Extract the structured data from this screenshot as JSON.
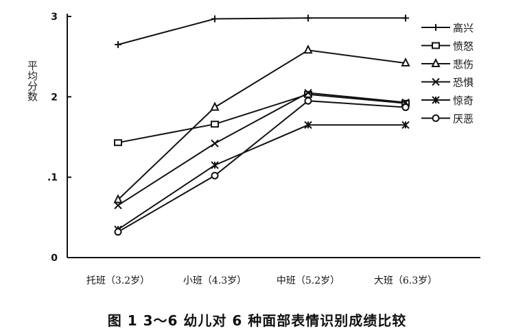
{
  "chart_data": {
    "type": "line",
    "title": "",
    "xlabel": "",
    "ylabel": "平均分数",
    "categories": [
      "托班（3.2岁）",
      "小班（4.3岁）",
      "中班（5.2岁）",
      "大班（6.3岁）"
    ],
    "yticks": [
      "0",
      ".1",
      "2",
      "3"
    ],
    "ylim": [
      0,
      3
    ],
    "grid": false,
    "legend_position": "right",
    "series": [
      {
        "name": "高兴",
        "marker": "plus",
        "values": [
          2.65,
          2.97,
          2.98,
          2.98
        ]
      },
      {
        "name": "愤怒",
        "marker": "square",
        "values": [
          1.43,
          1.66,
          2.03,
          1.92
        ]
      },
      {
        "name": "悲伤",
        "marker": "triangle",
        "values": [
          0.72,
          1.87,
          2.58,
          2.42
        ]
      },
      {
        "name": "恐惧",
        "marker": "x",
        "values": [
          0.65,
          1.42,
          2.05,
          1.93
        ]
      },
      {
        "name": "惊奇",
        "marker": "asterisk",
        "values": [
          0.35,
          1.15,
          1.65,
          1.65
        ]
      },
      {
        "name": "厌恶",
        "marker": "circle",
        "values": [
          0.32,
          1.02,
          1.95,
          1.87
        ]
      }
    ]
  },
  "caption": "图 1   3～6 幼儿对 6 种面部表情识别成绩比较"
}
